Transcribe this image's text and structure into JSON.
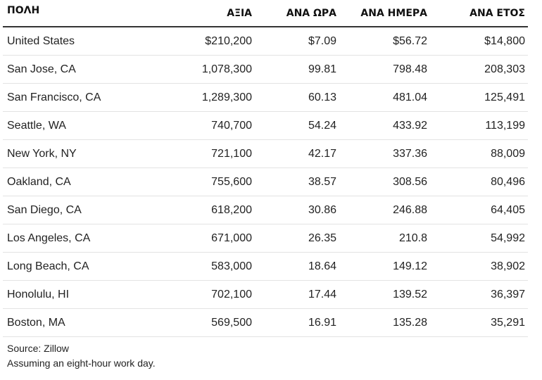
{
  "table": {
    "headers": [
      "ΠΟΛΗ",
      "ΑΞΙΑ",
      "ΑΝΑ ΩΡΑ",
      "ΑΝΑ ΗΜΕΡΑ",
      "ΑΝΑ ΕΤΟΣ"
    ],
    "rows": [
      [
        "United States",
        "$210,200",
        "$7.09",
        "$56.72",
        "$14,800"
      ],
      [
        "San Jose, CA",
        "1,078,300",
        "99.81",
        "798.48",
        "208,303"
      ],
      [
        "San Francisco, CA",
        "1,289,300",
        "60.13",
        "481.04",
        "125,491"
      ],
      [
        "Seattle, WA",
        "740,700",
        "54.24",
        "433.92",
        "113,199"
      ],
      [
        "New York, NY",
        "721,100",
        "42.17",
        "337.36",
        "88,009"
      ],
      [
        "Oakland, CA",
        "755,600",
        "38.57",
        "308.56",
        "80,496"
      ],
      [
        "San Diego, CA",
        "618,200",
        "30.86",
        "246.88",
        "64,405"
      ],
      [
        "Los Angeles, CA",
        "671,000",
        "26.35",
        "210.8",
        "54,992"
      ],
      [
        "Long Beach, CA",
        "583,000",
        "18.64",
        "149.12",
        "38,902"
      ],
      [
        "Honolulu, HI",
        "702,100",
        "17.44",
        "139.52",
        "36,397"
      ],
      [
        "Boston, MA",
        "569,500",
        "16.91",
        "135.28",
        "35,291"
      ]
    ]
  },
  "footnotes": {
    "source": "Source: Zillow",
    "note": "Assuming an eight-hour work day."
  }
}
